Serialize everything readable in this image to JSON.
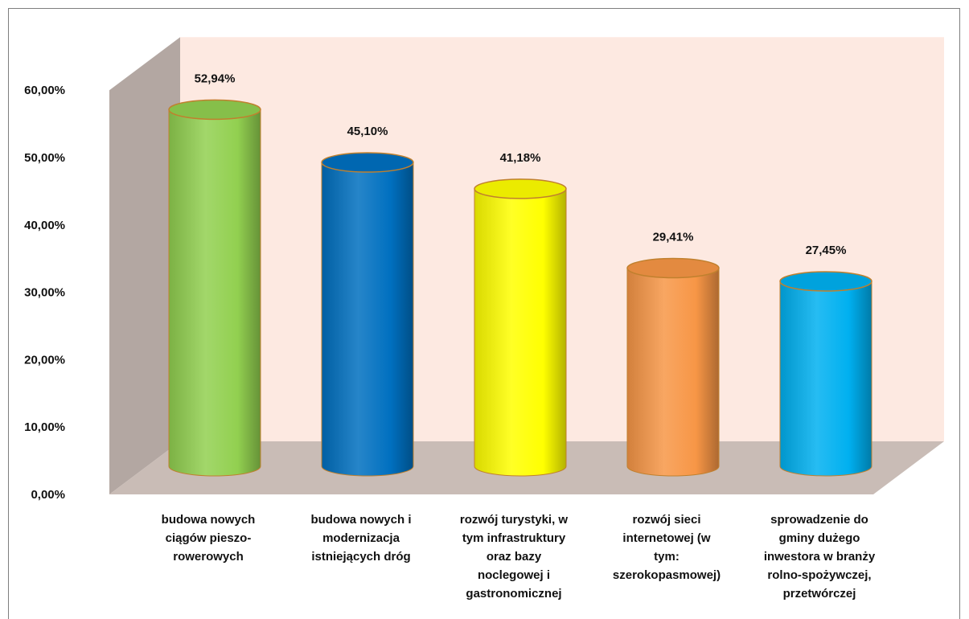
{
  "chart_data": {
    "type": "bar",
    "style": "3d-cylinder",
    "title": "",
    "xlabel": "",
    "ylabel": "",
    "ylim": [
      0,
      60
    ],
    "yticks": [
      "0,00%",
      "10,00%",
      "20,00%",
      "30,00%",
      "40,00%",
      "50,00%",
      "60,00%"
    ],
    "grid": false,
    "categories": [
      [
        "budowa nowych",
        "ciągów pieszo-",
        "rowerowych"
      ],
      [
        "budowa nowych i",
        "modernizacja",
        "istniejących dróg"
      ],
      [
        "rozwój turystyki, w",
        "tym infrastruktury",
        "oraz bazy",
        "noclegowej i",
        "gastronomicznej"
      ],
      [
        "rozwój sieci",
        "internetowej (w",
        "tym:",
        "szerokopasmowej)"
      ],
      [
        "sprowadzenie do",
        "gminy dużego",
        "inwestora w branży",
        "rolno-spożywczej,",
        "przetwórczej"
      ]
    ],
    "values": [
      52.94,
      45.1,
      41.18,
      29.41,
      27.45
    ],
    "data_labels": [
      "52,94%",
      "45,10%",
      "41,18%",
      "29,41%",
      "27,45%"
    ],
    "colors": [
      "#92d050",
      "#0070c0",
      "#ffff00",
      "#f79646",
      "#00b0f0"
    ],
    "wall_color": "#fde9e1",
    "side_wall_color": "#b3a7a2",
    "floor_color": "#c9bcb6"
  }
}
